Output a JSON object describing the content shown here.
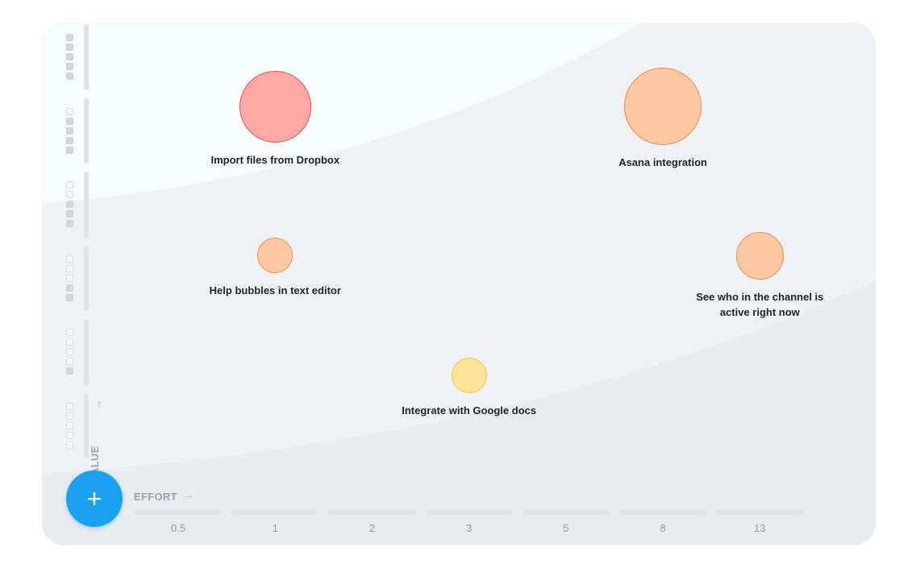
{
  "actions": {
    "add_symbol": "+"
  },
  "chart_data": {
    "type": "scatter",
    "x_axis": {
      "label": "EFFORT",
      "ticks": [
        "0.5",
        "1",
        "2",
        "3",
        "5",
        "8",
        "13"
      ]
    },
    "y_axis": {
      "label": "VALUE",
      "levels": 6
    },
    "points": [
      {
        "label": "Import files from Dropbox",
        "effort": "1",
        "value": 6,
        "size": 5,
        "fill": "#ffa8a5",
        "stroke": "#ef4f4d"
      },
      {
        "label": "Asana integration",
        "effort": "8",
        "value": 6,
        "size": 5.5,
        "fill": "#fdc8a2",
        "stroke": "#f1894e"
      },
      {
        "label": "Help bubbles in text editor",
        "effort": "1",
        "value": 3.5,
        "size": 2,
        "fill": "#fdc8a2",
        "stroke": "#f1894e"
      },
      {
        "label": "See who in the channel is active right now",
        "effort": "13",
        "value": 3.5,
        "size": 3,
        "fill": "#fdc8a2",
        "stroke": "#f1894e"
      },
      {
        "label": "Integrate with Google docs",
        "effort": "3",
        "value": 1.5,
        "size": 2,
        "fill": "#fde49a",
        "stroke": "#f6c437"
      }
    ],
    "colors": {
      "accent": "#1aa1f0"
    }
  }
}
